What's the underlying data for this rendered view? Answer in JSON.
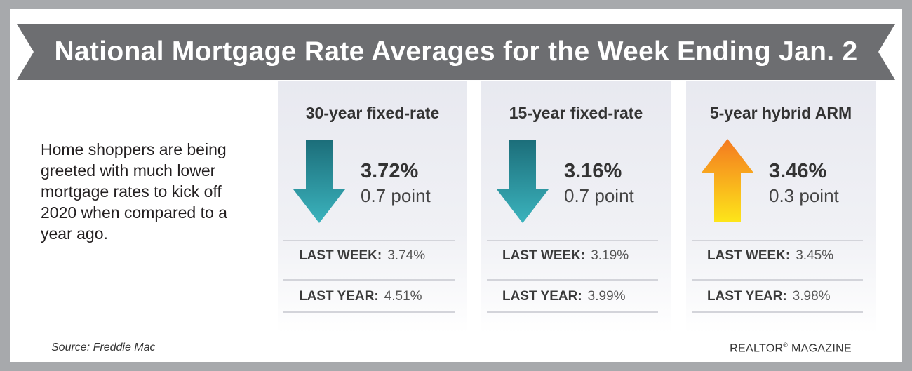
{
  "title": "National Mortgage Rate Averages for the Week Ending Jan. 2",
  "intro": "Home shoppers are being greeted with much lower mortgage rates to kick off 2020 when compared to a year ago.",
  "columns": [
    {
      "heading": "30-year fixed-rate",
      "rate": "3.72%",
      "change": "0.7 point",
      "direction": "down",
      "last_week_label": "LAST WEEK:",
      "last_week_value": "3.74%",
      "last_year_label": "LAST YEAR:",
      "last_year_value": "4.51%"
    },
    {
      "heading": "15-year fixed-rate",
      "rate": "3.16%",
      "change": "0.7 point",
      "direction": "down",
      "last_week_label": "LAST WEEK:",
      "last_week_value": "3.19%",
      "last_year_label": "LAST YEAR:",
      "last_year_value": "3.99%"
    },
    {
      "heading": "5-year hybrid ARM",
      "rate": "3.46%",
      "change": "0.3 point",
      "direction": "up",
      "last_week_label": "LAST WEEK:",
      "last_week_value": "3.45%",
      "last_year_label": "LAST YEAR:",
      "last_year_value": "3.98%"
    }
  ],
  "source": "Source: Freddie Mac",
  "brand": {
    "name": "REALTOR",
    "mark": "®",
    "suffix": " MAGAZINE"
  },
  "colors": {
    "banner": "#6d6e71",
    "down_arrow_top": "#1c6e7a",
    "down_arrow_bottom": "#3bb3bd",
    "up_arrow_top": "#f47920",
    "up_arrow_bottom": "#fde51a"
  },
  "icons": {
    "down": "arrow-down-icon",
    "up": "arrow-up-icon"
  }
}
